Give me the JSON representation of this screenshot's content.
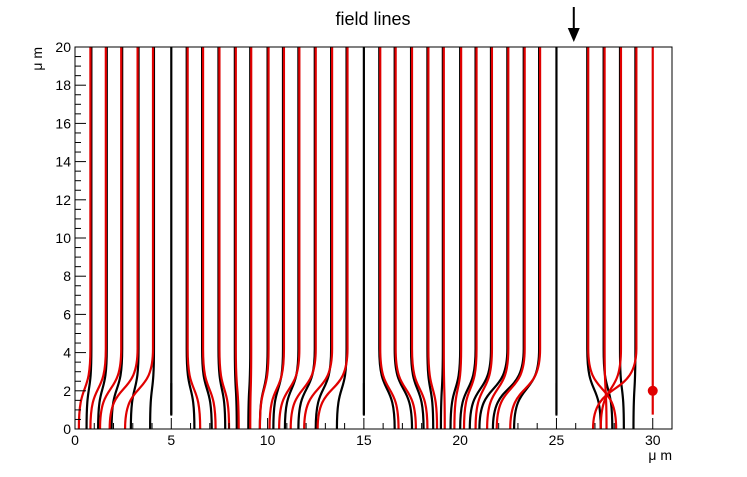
{
  "chart_data": {
    "type": "line",
    "title": "field lines",
    "xlabel": "μ m",
    "ylabel": "μ m",
    "xlim": [
      0,
      31
    ],
    "ylim": [
      0,
      20
    ],
    "x_ticks": [
      0,
      5,
      10,
      15,
      20,
      25,
      30
    ],
    "y_ticks": [
      0,
      2,
      4,
      6,
      8,
      10,
      12,
      14,
      16,
      18,
      20
    ],
    "colors": {
      "red": "#e00000",
      "black": "#000000"
    },
    "electrode_x": [
      5,
      15,
      25
    ],
    "marker_arrow": {
      "x": 25.9
    },
    "marker_dot": {
      "x": 30,
      "y": 2
    },
    "series": [
      {
        "color": "black",
        "lines": [
          {
            "top": 0.85,
            "bottom": 0.6
          },
          {
            "top": 1.65,
            "bottom": 1.2
          },
          {
            "top": 2.45,
            "bottom": 1.9
          },
          {
            "top": 3.3,
            "bottom": 2.9
          },
          {
            "top": 4.1,
            "bottom": 3.9
          },
          {
            "top": 5.0,
            "bottom": 5.0
          },
          {
            "top": 5.8,
            "bottom": 6.2
          },
          {
            "top": 6.6,
            "bottom": 7.1
          },
          {
            "top": 7.45,
            "bottom": 7.8
          },
          {
            "top": 8.3,
            "bottom": 8.4
          },
          {
            "top": 9.1,
            "bottom": 9.0
          },
          {
            "top": 10.0,
            "bottom": 9.6
          },
          {
            "top": 10.8,
            "bottom": 10.3
          },
          {
            "top": 11.6,
            "bottom": 10.9
          },
          {
            "top": 12.45,
            "bottom": 11.6
          },
          {
            "top": 13.3,
            "bottom": 12.5
          },
          {
            "top": 14.1,
            "bottom": 13.6
          },
          {
            "top": 15.0,
            "bottom": 15.0
          },
          {
            "top": 15.8,
            "bottom": 16.6
          },
          {
            "top": 16.6,
            "bottom": 17.5
          },
          {
            "top": 17.45,
            "bottom": 18.1
          },
          {
            "top": 18.3,
            "bottom": 18.6
          },
          {
            "top": 19.1,
            "bottom": 19.0
          },
          {
            "top": 20.0,
            "bottom": 19.5
          },
          {
            "top": 20.8,
            "bottom": 20.0
          },
          {
            "top": 21.6,
            "bottom": 20.5
          },
          {
            "top": 22.45,
            "bottom": 21.0
          },
          {
            "top": 23.3,
            "bottom": 21.7
          },
          {
            "top": 24.1,
            "bottom": 22.8
          },
          {
            "top": 25.0,
            "bottom": 25.0
          },
          {
            "top": 26.6,
            "bottom": 27.3
          },
          {
            "top": 27.45,
            "bottom": 27.9
          },
          {
            "top": 28.3,
            "bottom": 28.5
          },
          {
            "top": 29.1,
            "bottom": 29.0
          }
        ]
      },
      {
        "color": "red",
        "lines": [
          {
            "top": 0.8,
            "bottom": 0.2
          },
          {
            "top": 1.6,
            "bottom": 0.8
          },
          {
            "top": 2.4,
            "bottom": 1.3
          },
          {
            "top": 3.25,
            "bottom": 1.8
          },
          {
            "top": 4.05,
            "bottom": 2.6
          },
          {
            "top": 5.85,
            "bottom": 6.5
          },
          {
            "top": 6.65,
            "bottom": 7.3
          },
          {
            "top": 7.5,
            "bottom": 8.0
          },
          {
            "top": 8.35,
            "bottom": 8.5
          },
          {
            "top": 9.15,
            "bottom": 9.1
          },
          {
            "top": 10.05,
            "bottom": 9.6
          },
          {
            "top": 10.85,
            "bottom": 10.1
          },
          {
            "top": 11.65,
            "bottom": 10.6
          },
          {
            "top": 12.5,
            "bottom": 11.2
          },
          {
            "top": 13.35,
            "bottom": 11.9
          },
          {
            "top": 14.15,
            "bottom": 12.6
          },
          {
            "top": 15.85,
            "bottom": 16.8
          },
          {
            "top": 16.65,
            "bottom": 17.7
          },
          {
            "top": 17.5,
            "bottom": 18.3
          },
          {
            "top": 18.35,
            "bottom": 18.8
          },
          {
            "top": 19.15,
            "bottom": 19.2
          },
          {
            "top": 20.05,
            "bottom": 19.7
          },
          {
            "top": 20.85,
            "bottom": 20.2
          },
          {
            "top": 21.65,
            "bottom": 20.8
          },
          {
            "top": 22.5,
            "bottom": 21.4
          },
          {
            "top": 23.35,
            "bottom": 21.9
          },
          {
            "top": 24.15,
            "bottom": 22.6
          },
          {
            "top": 26.65,
            "bottom": 28.1
          },
          {
            "top": 27.5,
            "bottom": 27.6
          },
          {
            "top": 28.35,
            "bottom": 27.3
          },
          {
            "top": 29.15,
            "bottom": 26.9
          },
          {
            "top": 30.0,
            "bottom": 30.0
          }
        ]
      }
    ]
  }
}
